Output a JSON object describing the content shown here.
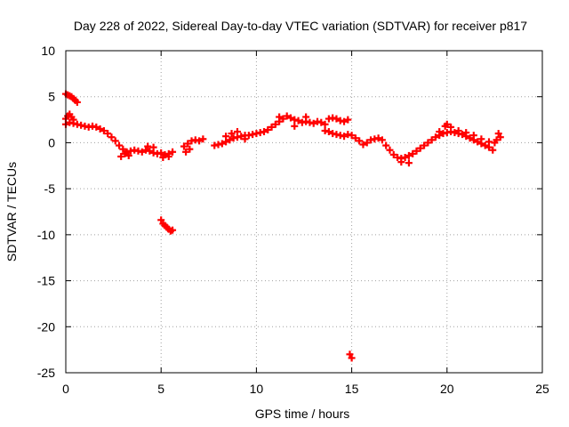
{
  "chart_data": {
    "type": "scatter",
    "title": "Day 228 of 2022, Sidereal Day-to-day VTEC variation (SDTVAR) for receiver p817",
    "xlabel": "GPS time / hours",
    "ylabel": "SDTVAR / TECUs",
    "xlim": [
      0,
      25
    ],
    "ylim": [
      -25,
      10
    ],
    "x_ticks": [
      0,
      5,
      10,
      15,
      20,
      25
    ],
    "y_ticks": [
      -25,
      -20,
      -15,
      -10,
      -5,
      0,
      5,
      10
    ],
    "grid": true,
    "marker_color": "#ff0000",
    "series": [
      {
        "name": "SDTVAR",
        "points": [
          [
            0.0,
            5.3
          ],
          [
            0.1,
            5.2
          ],
          [
            0.2,
            5.1
          ],
          [
            0.3,
            5.0
          ],
          [
            0.4,
            4.8
          ],
          [
            0.5,
            4.6
          ],
          [
            0.6,
            4.4
          ],
          [
            0.0,
            2.6
          ],
          [
            0.1,
            2.9
          ],
          [
            0.2,
            3.1
          ],
          [
            0.3,
            2.8
          ],
          [
            0.4,
            2.5
          ],
          [
            0.0,
            2.0
          ],
          [
            0.2,
            2.2
          ],
          [
            0.4,
            2.1
          ],
          [
            0.6,
            2.0
          ],
          [
            0.8,
            1.9
          ],
          [
            1.0,
            1.8
          ],
          [
            1.2,
            1.7
          ],
          [
            1.4,
            1.8
          ],
          [
            1.6,
            1.7
          ],
          [
            1.8,
            1.5
          ],
          [
            2.0,
            1.3
          ],
          [
            2.2,
            1.0
          ],
          [
            2.4,
            0.6
          ],
          [
            2.6,
            0.2
          ],
          [
            2.8,
            -0.3
          ],
          [
            3.0,
            -0.7
          ],
          [
            3.2,
            -1.0
          ],
          [
            3.4,
            -0.9
          ],
          [
            3.6,
            -0.8
          ],
          [
            3.8,
            -0.9
          ],
          [
            4.0,
            -1.0
          ],
          [
            4.2,
            -0.8
          ],
          [
            4.4,
            -0.9
          ],
          [
            4.6,
            -1.1
          ],
          [
            4.8,
            -1.2
          ],
          [
            5.0,
            -1.1
          ],
          [
            5.2,
            -1.3
          ],
          [
            5.4,
            -1.2
          ],
          [
            5.6,
            -1.0
          ],
          [
            2.9,
            -1.5
          ],
          [
            3.1,
            -1.2
          ],
          [
            3.3,
            -1.4
          ],
          [
            4.3,
            -0.4
          ],
          [
            4.6,
            -0.5
          ],
          [
            5.1,
            -1.6
          ],
          [
            5.4,
            -1.5
          ],
          [
            5.0,
            -8.4
          ],
          [
            5.1,
            -8.8
          ],
          [
            5.2,
            -9.0
          ],
          [
            5.3,
            -9.2
          ],
          [
            5.4,
            -9.4
          ],
          [
            5.5,
            -9.6
          ],
          [
            5.6,
            -9.5
          ],
          [
            6.2,
            -0.4
          ],
          [
            6.4,
            -0.1
          ],
          [
            6.6,
            0.2
          ],
          [
            6.8,
            0.3
          ],
          [
            7.0,
            0.2
          ],
          [
            7.2,
            0.4
          ],
          [
            6.3,
            -1.0
          ],
          [
            6.5,
            -0.7
          ],
          [
            7.8,
            -0.3
          ],
          [
            8.0,
            -0.2
          ],
          [
            8.2,
            -0.1
          ],
          [
            8.4,
            0.1
          ],
          [
            8.6,
            0.3
          ],
          [
            8.8,
            0.5
          ],
          [
            9.0,
            0.6
          ],
          [
            9.2,
            0.7
          ],
          [
            9.4,
            0.8
          ],
          [
            9.6,
            0.8
          ],
          [
            9.8,
            0.9
          ],
          [
            10.0,
            1.0
          ],
          [
            10.2,
            1.1
          ],
          [
            10.4,
            1.2
          ],
          [
            10.6,
            1.4
          ],
          [
            10.8,
            1.7
          ],
          [
            11.0,
            2.0
          ],
          [
            11.2,
            2.3
          ],
          [
            11.4,
            2.6
          ],
          [
            11.6,
            2.9
          ],
          [
            11.8,
            2.7
          ],
          [
            12.0,
            2.5
          ],
          [
            12.2,
            2.4
          ],
          [
            12.4,
            2.2
          ],
          [
            12.6,
            2.3
          ],
          [
            12.8,
            2.2
          ],
          [
            13.0,
            2.1
          ],
          [
            13.2,
            2.3
          ],
          [
            13.4,
            2.2
          ],
          [
            13.6,
            2.0
          ],
          [
            8.4,
            0.7
          ],
          [
            8.7,
            1.0
          ],
          [
            9.0,
            1.2
          ],
          [
            9.4,
            0.4
          ],
          [
            11.2,
            2.8
          ],
          [
            12.0,
            1.8
          ],
          [
            12.6,
            2.8
          ],
          [
            13.8,
            2.6
          ],
          [
            14.0,
            2.7
          ],
          [
            14.2,
            2.6
          ],
          [
            14.4,
            2.4
          ],
          [
            14.6,
            2.3
          ],
          [
            14.8,
            2.5
          ],
          [
            14.9,
            -23.0
          ],
          [
            15.0,
            -23.4
          ],
          [
            13.6,
            1.3
          ],
          [
            13.8,
            1.2
          ],
          [
            14.0,
            1.0
          ],
          [
            14.2,
            0.9
          ],
          [
            14.4,
            0.8
          ],
          [
            14.6,
            0.7
          ],
          [
            14.8,
            0.9
          ],
          [
            15.0,
            0.8
          ],
          [
            15.2,
            0.5
          ],
          [
            15.4,
            0.2
          ],
          [
            15.6,
            -0.2
          ],
          [
            15.8,
            0.0
          ],
          [
            16.0,
            0.3
          ],
          [
            16.2,
            0.4
          ],
          [
            16.4,
            0.5
          ],
          [
            16.6,
            0.3
          ],
          [
            16.8,
            -0.3
          ],
          [
            17.0,
            -0.8
          ],
          [
            17.2,
            -1.3
          ],
          [
            17.4,
            -1.6
          ],
          [
            17.6,
            -1.7
          ],
          [
            17.8,
            -1.6
          ],
          [
            18.0,
            -1.4
          ],
          [
            18.2,
            -1.2
          ],
          [
            18.4,
            -0.9
          ],
          [
            18.6,
            -0.6
          ],
          [
            18.8,
            -0.3
          ],
          [
            19.0,
            0.0
          ],
          [
            19.2,
            0.3
          ],
          [
            19.4,
            0.6
          ],
          [
            19.6,
            0.8
          ],
          [
            19.8,
            1.0
          ],
          [
            20.0,
            1.1
          ],
          [
            20.2,
            1.2
          ],
          [
            20.4,
            1.1
          ],
          [
            20.6,
            1.0
          ],
          [
            20.8,
            0.9
          ],
          [
            21.0,
            0.7
          ],
          [
            21.2,
            0.5
          ],
          [
            21.4,
            0.3
          ],
          [
            21.6,
            0.1
          ],
          [
            21.8,
            -0.1
          ],
          [
            22.0,
            -0.3
          ],
          [
            22.2,
            -0.5
          ],
          [
            22.4,
            -0.8
          ],
          [
            17.6,
            -2.1
          ],
          [
            18.0,
            -2.2
          ],
          [
            19.9,
            1.8
          ],
          [
            20.0,
            2.0
          ],
          [
            20.2,
            1.7
          ],
          [
            19.6,
            1.2
          ],
          [
            20.6,
            1.3
          ],
          [
            21.0,
            1.1
          ],
          [
            21.4,
            0.8
          ],
          [
            21.8,
            0.4
          ],
          [
            22.2,
            0.1
          ],
          [
            22.6,
            0.3
          ],
          [
            22.8,
            0.6
          ],
          [
            22.7,
            1.0
          ],
          [
            22.5,
            0.0
          ]
        ]
      }
    ]
  }
}
